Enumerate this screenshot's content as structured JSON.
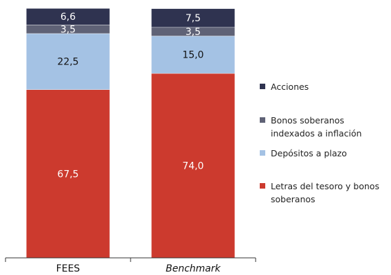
{
  "chart_data": {
    "type": "stacked-bar",
    "categories": [
      "FEES",
      "Benchmark"
    ],
    "series": [
      {
        "name": "Letras del tesoro y bonos soberanos",
        "color": "#cc3a2e",
        "values": [
          67.5,
          74.0
        ],
        "value_labels": [
          "67,5",
          "74,0"
        ]
      },
      {
        "name": "Depósitos a plazo",
        "color": "#a4c2e4",
        "values": [
          22.5,
          15.0
        ],
        "value_labels": [
          "22,5",
          "15,0"
        ]
      },
      {
        "name": "Bonos soberanos indexados a inflación",
        "color": "#5f6276",
        "values": [
          3.5,
          3.5
        ],
        "value_labels": [
          "3,5",
          "3,5"
        ]
      },
      {
        "name": "Acciones",
        "color": "#2f3350",
        "values": [
          6.6,
          7.5
        ],
        "value_labels": [
          "6,6",
          "7,5"
        ]
      }
    ]
  }
}
